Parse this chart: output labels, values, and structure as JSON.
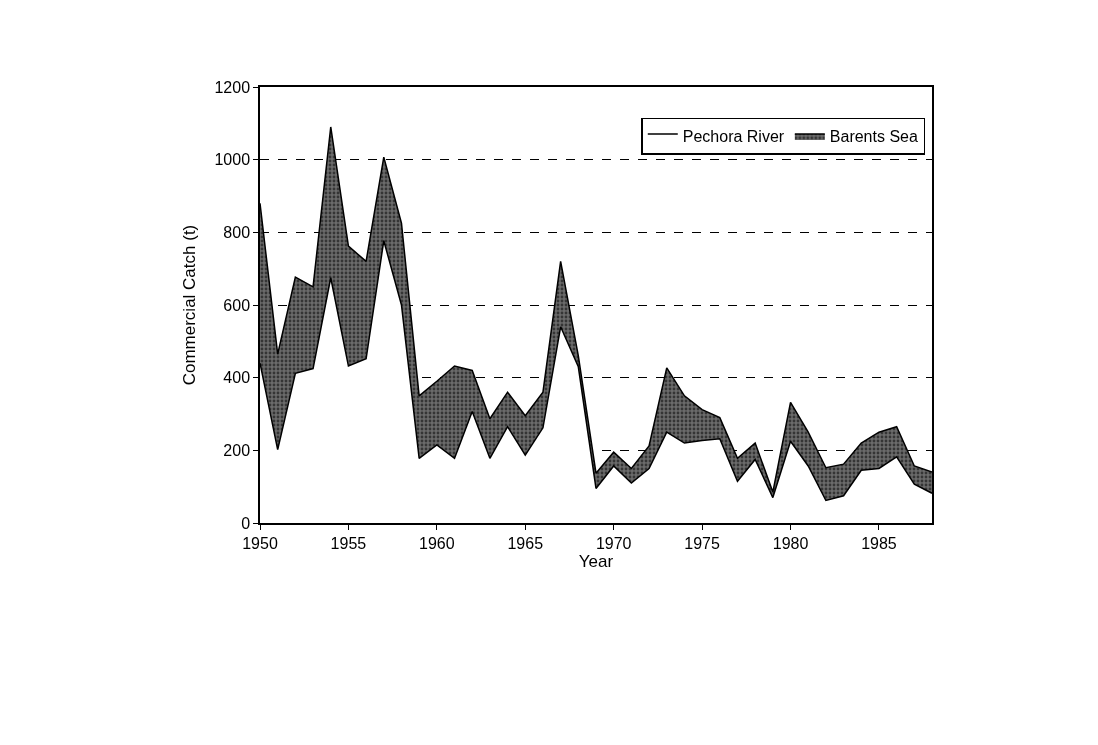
{
  "chart_data": {
    "type": "area",
    "stacked": true,
    "xlabel": "Year",
    "ylabel": "Commercial Catch (t)",
    "x": [
      1950,
      1951,
      1952,
      1953,
      1954,
      1955,
      1956,
      1957,
      1958,
      1959,
      1960,
      1961,
      1962,
      1963,
      1964,
      1965,
      1966,
      1967,
      1968,
      1969,
      1970,
      1971,
      1972,
      1973,
      1974,
      1975,
      1976,
      1977,
      1978,
      1979,
      1980,
      1981,
      1982,
      1983,
      1984,
      1985,
      1986,
      1987,
      1988
    ],
    "series": [
      {
        "name": "Pechora River",
        "color": "#ffffff",
        "values": [
          440,
          202,
          412,
          425,
          675,
          432,
          452,
          777,
          600,
          178,
          215,
          178,
          307,
          178,
          265,
          187,
          262,
          540,
          430,
          95,
          157,
          110,
          150,
          250,
          220,
          227,
          232,
          115,
          175,
          70,
          225,
          157,
          62,
          75,
          145,
          150,
          182,
          107,
          82
        ]
      },
      {
        "name": "Barents Sea",
        "color": "#6b6b6b",
        "values": [
          440,
          263,
          265,
          225,
          415,
          330,
          268,
          230,
          225,
          172,
          175,
          254,
          113,
          109,
          95,
          108,
          98,
          180,
          30,
          42,
          38,
          40,
          62,
          177,
          130,
          85,
          58,
          63,
          45,
          15,
          107,
          93,
          90,
          87,
          75,
          100,
          83,
          50,
          58
        ]
      }
    ],
    "xlim": [
      1950,
      1988
    ],
    "xticks": [
      1950,
      1955,
      1960,
      1965,
      1970,
      1975,
      1980,
      1985
    ],
    "ylim": [
      0,
      1200
    ],
    "yticks": [
      0,
      200,
      400,
      600,
      800,
      1000,
      1200
    ],
    "grid": "y",
    "legend": "top right"
  }
}
